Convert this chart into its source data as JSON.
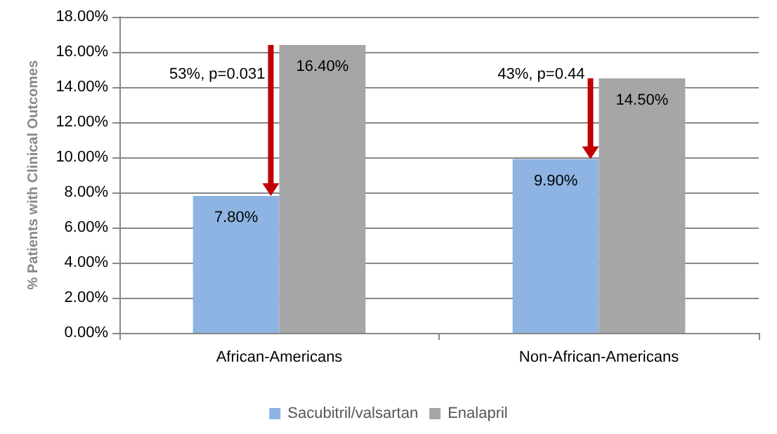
{
  "chart_data": {
    "type": "bar",
    "ylabel": "% Patients with Clinical Outcomes",
    "categories": [
      "African-Americans",
      "Non-African-Americans"
    ],
    "series": [
      {
        "name": "Sacubitril/valsartan",
        "color": "#8db4e2",
        "values": [
          7.8,
          9.9
        ],
        "value_labels": [
          "7.80%",
          "9.90%"
        ]
      },
      {
        "name": "Enalapril",
        "color": "#a6a6a6",
        "values": [
          16.4,
          14.5
        ],
        "value_labels": [
          "16.40%",
          "14.50%"
        ]
      }
    ],
    "ylim": [
      0,
      18
    ],
    "yticks": [
      {
        "value": 0,
        "label": "0.00%"
      },
      {
        "value": 2,
        "label": "2.00%"
      },
      {
        "value": 4,
        "label": "4.00%"
      },
      {
        "value": 6,
        "label": "6.00%"
      },
      {
        "value": 8,
        "label": "8.00%"
      },
      {
        "value": 10,
        "label": "10.00%"
      },
      {
        "value": 12,
        "label": "12.00%"
      },
      {
        "value": 14,
        "label": "14.00%"
      },
      {
        "value": 16,
        "label": "16.00%"
      },
      {
        "value": 18,
        "label": "18.00%"
      }
    ],
    "grid": "y",
    "legend": "bottom",
    "annotations": [
      {
        "text": "53%, p=0.031",
        "x": "African-Americans",
        "y": 14.5
      },
      {
        "text": "43%, p=0.44",
        "x": "Non-African-Americans",
        "y": 14.5
      }
    ]
  }
}
